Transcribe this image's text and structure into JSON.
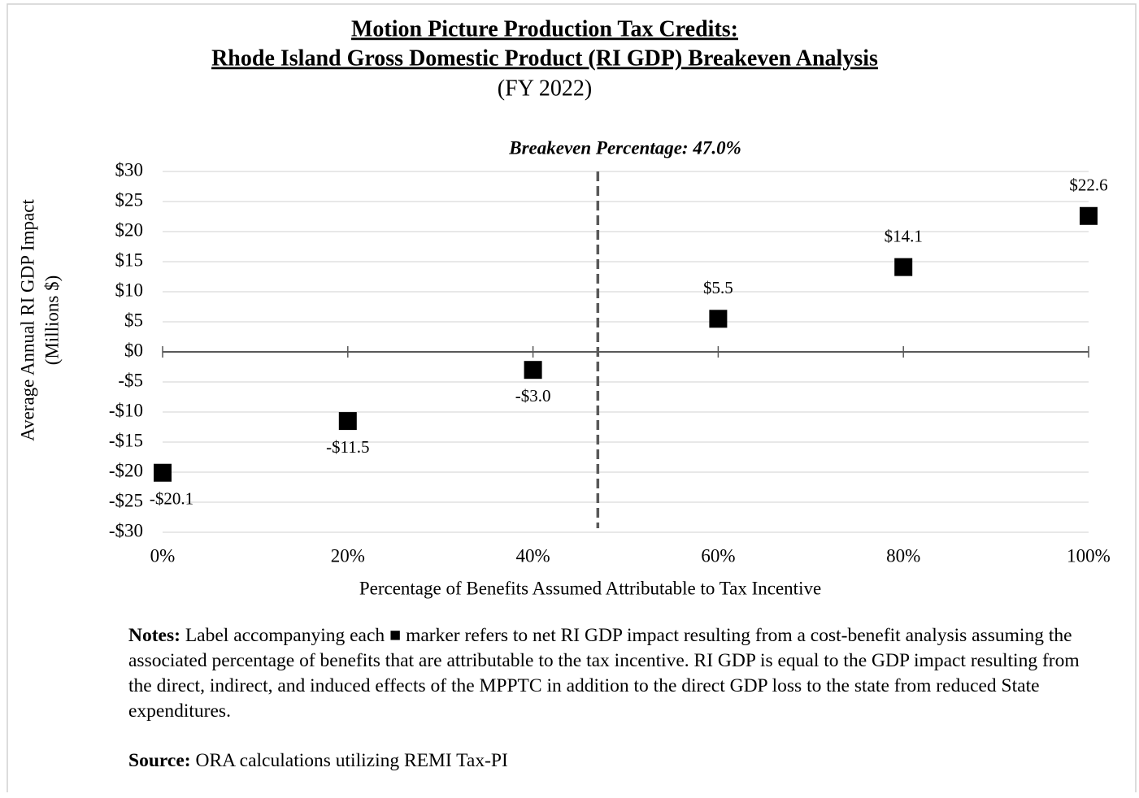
{
  "chart_data": {
    "type": "scatter",
    "title": [
      "Motion Picture Production Tax Credits:",
      "Rhode Island Gross Domestic Product (RI GDP) Breakeven Analysis"
    ],
    "subtitle": "(FY 2022)",
    "annotation": "Breakeven Percentage: 47.0%",
    "breakeven": 47.0,
    "x_label": "Percentage of Benefits Assumed Attributable to Tax Incentive",
    "y_label": [
      "Average Annual RI GDP Impact",
      "(Millions $)"
    ],
    "x": [
      0,
      20,
      40,
      60,
      80,
      100
    ],
    "values": [
      -20.1,
      -11.5,
      -3.0,
      5.5,
      14.1,
      22.6
    ],
    "value_labels": [
      "-$20.1",
      "-$11.5",
      "-$3.0",
      "$5.5",
      "$14.1",
      "$22.6"
    ],
    "color": "#000000",
    "xlim": [
      0,
      100
    ],
    "xticks": [
      {
        "value": 0,
        "label": "0%"
      },
      {
        "value": 20,
        "label": "20%"
      },
      {
        "value": 40,
        "label": "40%"
      },
      {
        "value": 60,
        "label": "60%"
      },
      {
        "value": 80,
        "label": "80%"
      },
      {
        "value": 100,
        "label": "100%"
      }
    ],
    "ylim": [
      -30,
      30
    ],
    "yticks": [
      {
        "value": -30,
        "label": "-$30"
      },
      {
        "value": -25,
        "label": "-$25"
      },
      {
        "value": -20,
        "label": "-$20"
      },
      {
        "value": -15,
        "label": "-$15"
      },
      {
        "value": -10,
        "label": "-$10"
      },
      {
        "value": -5,
        "label": "-$5"
      },
      {
        "value": 0,
        "label": "$0"
      },
      {
        "value": 5,
        "label": "$5"
      },
      {
        "value": 10,
        "label": "$10"
      },
      {
        "value": 15,
        "label": "$15"
      },
      {
        "value": 20,
        "label": "$20"
      },
      {
        "value": 25,
        "label": "$25"
      },
      {
        "value": 30,
        "label": "$30"
      }
    ],
    "grid": true
  },
  "notes": {
    "label": "Notes:",
    "text": "Label accompanying each ■ marker refers to net RI GDP impact resulting from a cost-benefit analysis assuming the associated percentage of benefits that are attributable to the tax incentive. RI GDP is equal to the GDP impact resulting from the direct, indirect, and induced effects of the MPPTC in addition to the direct GDP loss to the state from reduced State expenditures."
  },
  "source": {
    "label": "Source:",
    "text": "ORA calculations utilizing REMI Tax-PI"
  }
}
